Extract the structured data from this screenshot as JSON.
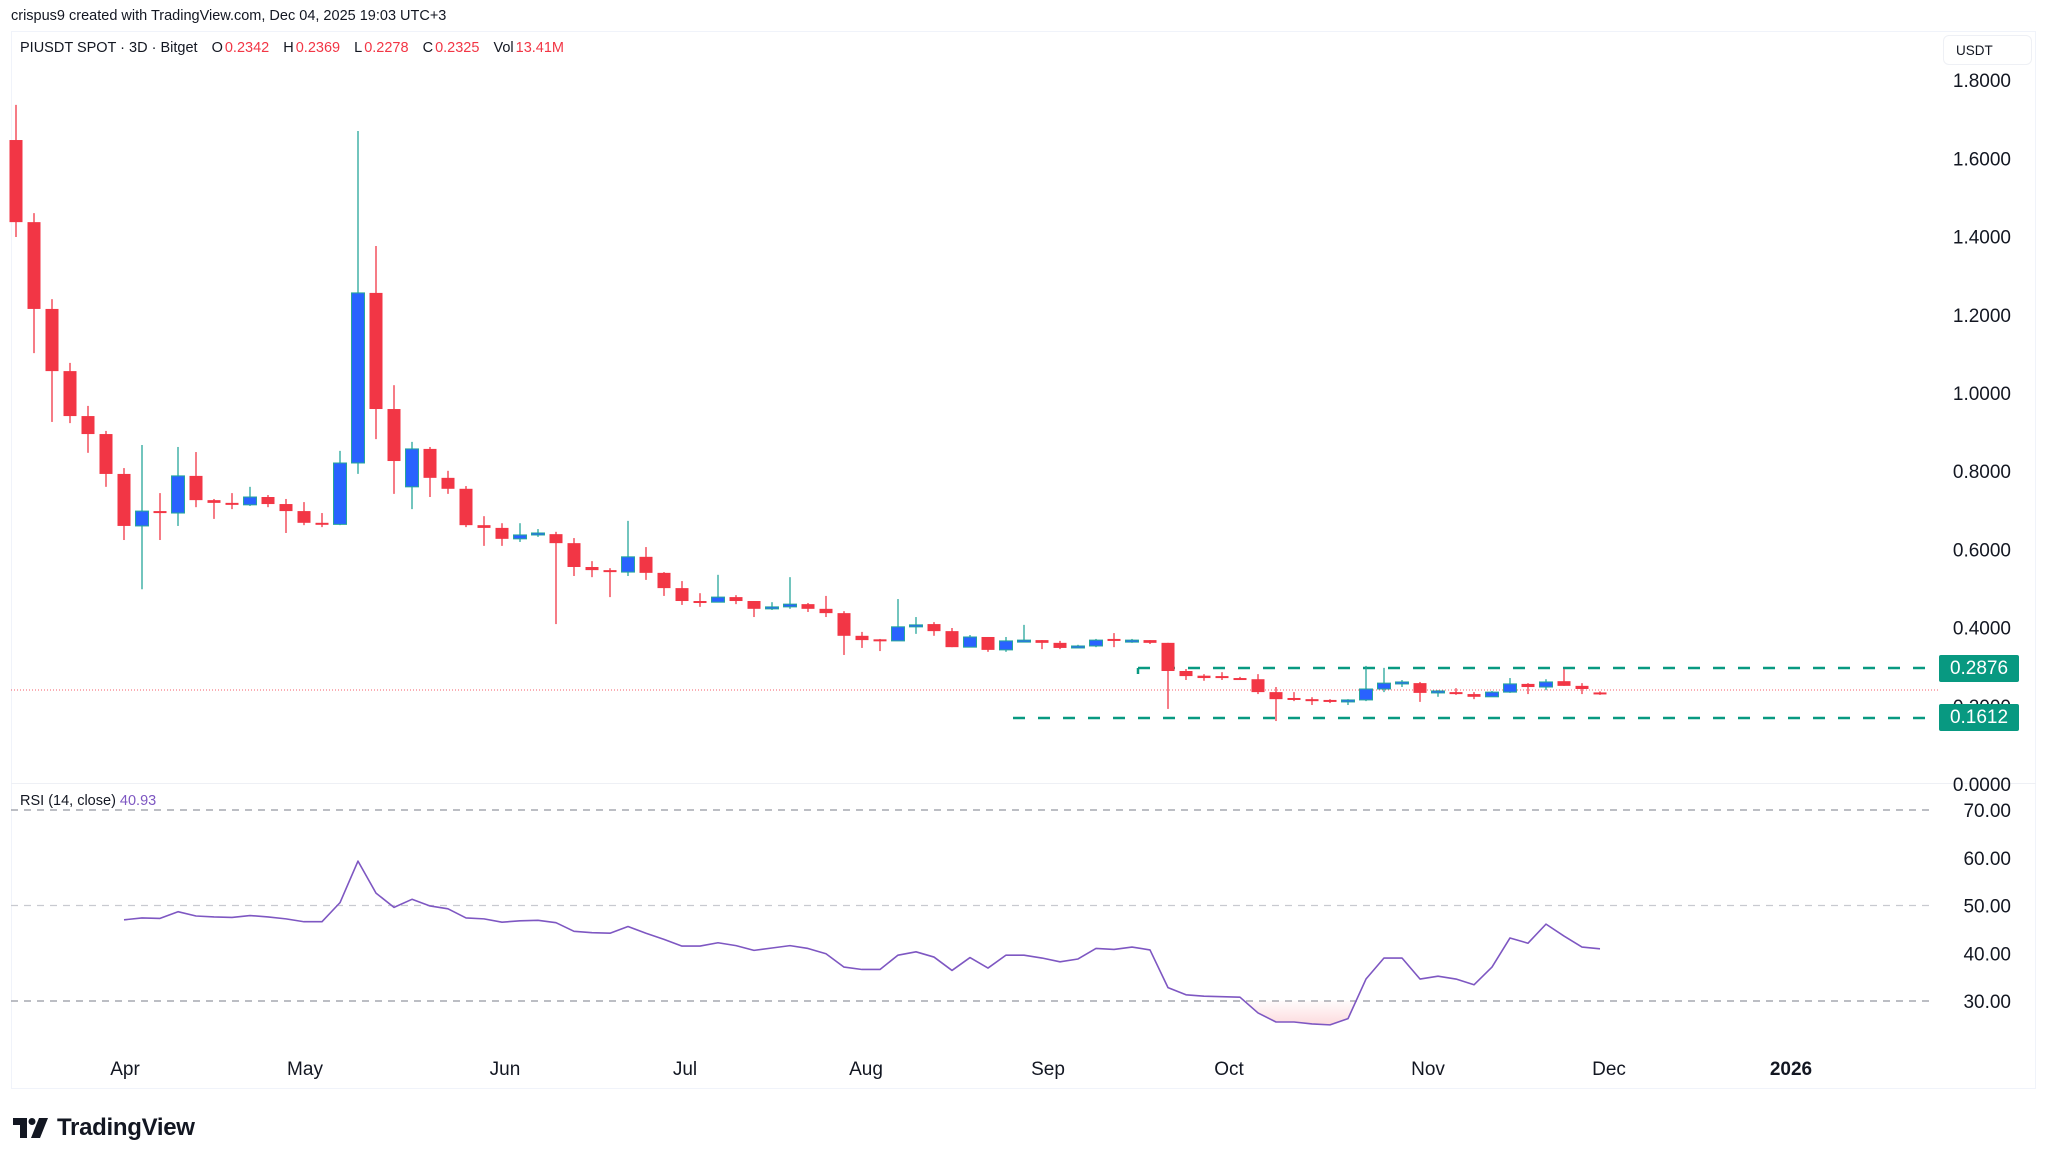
{
  "header": {
    "credit": "crispus9 created with TradingView.com, Dec 04, 2025 19:03 UTC+3"
  },
  "legend": {
    "symbol": "PIUSDT SPOT · 3D · Bitget",
    "open_label": "O",
    "open": "0.2342",
    "high_label": "H",
    "high": "0.2369",
    "low_label": "L",
    "low": "0.2278",
    "close_label": "C",
    "close": "0.2325",
    "vol_label": "Vol",
    "vol": "13.41M"
  },
  "price_axis": {
    "currency": "USDT",
    "ticks": [
      "1.8000",
      "1.6000",
      "1.4000",
      "1.2000",
      "1.0000",
      "0.8000",
      "0.6000",
      "0.4000",
      "0.2000",
      "0.0000"
    ]
  },
  "levels": {
    "resistance": "0.2876",
    "support": "0.1612"
  },
  "rsi": {
    "label": "RSI (14, close)",
    "value": "40.93",
    "ticks": [
      "70.00",
      "60.00",
      "50.00",
      "40.00",
      "30.00"
    ]
  },
  "time_axis": {
    "labels": [
      "Apr",
      "May",
      "Jun",
      "Jul",
      "Aug",
      "Sep",
      "Oct",
      "Nov",
      "Dec",
      "2026"
    ]
  },
  "branding": {
    "logo_text": "TradingView"
  },
  "colors": {
    "up_body": "#2962ff",
    "up_wick": "#26a69a",
    "down": "#f23645",
    "level_line": "#089981",
    "rsi_line": "#7e57c2",
    "last_price_line": "#f23645"
  },
  "chart_data": [
    {
      "type": "candlestick",
      "title": "PIUSDT SPOT · 3D · Bitget",
      "ylabel": "USDT",
      "ylim": [
        0,
        1.8
      ],
      "x_ticks": [
        "Apr",
        "May",
        "Jun",
        "Jul",
        "Aug",
        "Sep",
        "Oct",
        "Nov",
        "Dec",
        "2026"
      ],
      "horizontal_levels": [
        0.2876,
        0.1612
      ],
      "last_close": 0.2325,
      "columns": [
        "open",
        "high",
        "low",
        "close"
      ],
      "candles": [
        [
          1.647,
          1.737,
          1.399,
          1.437
        ],
        [
          1.437,
          1.46,
          1.102,
          1.215
        ],
        [
          1.215,
          1.24,
          0.926,
          1.056
        ],
        [
          1.056,
          1.077,
          0.923,
          0.941
        ],
        [
          0.941,
          0.967,
          0.847,
          0.895
        ],
        [
          0.895,
          0.903,
          0.76,
          0.793
        ],
        [
          0.793,
          0.808,
          0.624,
          0.66
        ],
        [
          0.66,
          0.867,
          0.498,
          0.698
        ],
        [
          0.698,
          0.744,
          0.624,
          0.693
        ],
        [
          0.693,
          0.862,
          0.66,
          0.788
        ],
        [
          0.788,
          0.849,
          0.708,
          0.726
        ],
        [
          0.726,
          0.729,
          0.678,
          0.719
        ],
        [
          0.719,
          0.744,
          0.703,
          0.714
        ],
        [
          0.714,
          0.76,
          0.711,
          0.734
        ],
        [
          0.734,
          0.739,
          0.708,
          0.716
        ],
        [
          0.716,
          0.729,
          0.642,
          0.698
        ],
        [
          0.698,
          0.721,
          0.662,
          0.668
        ],
        [
          0.668,
          0.693,
          0.657,
          0.664
        ],
        [
          0.664,
          0.852,
          0.662,
          0.821
        ],
        [
          0.821,
          1.67,
          0.793,
          1.256
        ],
        [
          1.256,
          1.376,
          0.882,
          0.959
        ],
        [
          0.959,
          1.02,
          0.742,
          0.826
        ],
        [
          0.76,
          0.875,
          0.703,
          0.857
        ],
        [
          0.857,
          0.862,
          0.734,
          0.783
        ],
        [
          0.783,
          0.801,
          0.742,
          0.755
        ],
        [
          0.755,
          0.762,
          0.657,
          0.662
        ],
        [
          0.662,
          0.685,
          0.609,
          0.655
        ],
        [
          0.655,
          0.667,
          0.609,
          0.627
        ],
        [
          0.627,
          0.667,
          0.619,
          0.637
        ],
        [
          0.637,
          0.652,
          0.632,
          0.642
        ],
        [
          0.639,
          0.645,
          0.409,
          0.616
        ],
        [
          0.616,
          0.629,
          0.532,
          0.555
        ],
        [
          0.555,
          0.57,
          0.529,
          0.547
        ],
        [
          0.547,
          0.552,
          0.478,
          0.542
        ],
        [
          0.542,
          0.673,
          0.532,
          0.581
        ],
        [
          0.581,
          0.606,
          0.522,
          0.54
        ],
        [
          0.54,
          0.542,
          0.481,
          0.501
        ],
        [
          0.501,
          0.519,
          0.458,
          0.468
        ],
        [
          0.468,
          0.488,
          0.453,
          0.465
        ],
        [
          0.465,
          0.535,
          0.465,
          0.478
        ],
        [
          0.478,
          0.483,
          0.46,
          0.468
        ],
        [
          0.468,
          0.468,
          0.427,
          0.448
        ],
        [
          0.448,
          0.465,
          0.445,
          0.453
        ],
        [
          0.453,
          0.529,
          0.448,
          0.46
        ],
        [
          0.46,
          0.463,
          0.44,
          0.448
        ],
        [
          0.448,
          0.481,
          0.427,
          0.437
        ],
        [
          0.437,
          0.442,
          0.33,
          0.379
        ],
        [
          0.379,
          0.389,
          0.348,
          0.368
        ],
        [
          0.37,
          0.371,
          0.34,
          0.366
        ],
        [
          0.366,
          0.473,
          0.366,
          0.402
        ],
        [
          0.402,
          0.427,
          0.384,
          0.407
        ],
        [
          0.409,
          0.414,
          0.379,
          0.391
        ],
        [
          0.391,
          0.399,
          0.35,
          0.35
        ],
        [
          0.35,
          0.381,
          0.35,
          0.376
        ],
        [
          0.376,
          0.376,
          0.338,
          0.343
        ],
        [
          0.343,
          0.376,
          0.338,
          0.366
        ],
        [
          0.366,
          0.407,
          0.363,
          0.368
        ],
        [
          0.368,
          0.368,
          0.345,
          0.361
        ],
        [
          0.361,
          0.366,
          0.345,
          0.348
        ],
        [
          0.348,
          0.356,
          0.348,
          0.353
        ],
        [
          0.353,
          0.371,
          0.35,
          0.368
        ],
        [
          0.371,
          0.386,
          0.35,
          0.368
        ],
        [
          0.366,
          0.371,
          0.361,
          0.368
        ],
        [
          0.368,
          0.368,
          0.358,
          0.361
        ],
        [
          0.361,
          0.361,
          0.192,
          0.289
        ],
        [
          0.289,
          0.294,
          0.266,
          0.276
        ],
        [
          0.277,
          0.281,
          0.264,
          0.271
        ],
        [
          0.276,
          0.286,
          0.266,
          0.271
        ],
        [
          0.271,
          0.274,
          0.268,
          0.268
        ],
        [
          0.268,
          0.281,
          0.23,
          0.235
        ],
        [
          0.235,
          0.248,
          0.161,
          0.217
        ],
        [
          0.22,
          0.235,
          0.212,
          0.217
        ],
        [
          0.217,
          0.222,
          0.202,
          0.212
        ],
        [
          0.215,
          0.217,
          0.207,
          0.21
        ],
        [
          0.21,
          0.217,
          0.202,
          0.215
        ],
        [
          0.215,
          0.302,
          0.212,
          0.243
        ],
        [
          0.243,
          0.297,
          0.235,
          0.258
        ],
        [
          0.258,
          0.266,
          0.248,
          0.261
        ],
        [
          0.258,
          0.261,
          0.21,
          0.233
        ],
        [
          0.235,
          0.24,
          0.223,
          0.238
        ],
        [
          0.235,
          0.245,
          0.228,
          0.233
        ],
        [
          0.23,
          0.235,
          0.217,
          0.223
        ],
        [
          0.223,
          0.238,
          0.223,
          0.235
        ],
        [
          0.235,
          0.271,
          0.233,
          0.256
        ],
        [
          0.256,
          0.258,
          0.23,
          0.248
        ],
        [
          0.248,
          0.268,
          0.24,
          0.261
        ],
        [
          0.263,
          0.294,
          0.251,
          0.251
        ],
        [
          0.251,
          0.258,
          0.23,
          0.243
        ],
        [
          0.2342,
          0.2369,
          0.2278,
          0.2325
        ]
      ]
    },
    {
      "type": "line",
      "title": "RSI (14, close)",
      "ylim": [
        20,
        75
      ],
      "reference_lines": [
        70,
        50,
        30
      ],
      "start_index": 6,
      "values": [
        47.0,
        47.4,
        47.3,
        48.7,
        47.8,
        47.6,
        47.5,
        47.9,
        47.6,
        47.2,
        46.6,
        46.6,
        50.6,
        59.3,
        52.6,
        49.6,
        51.3,
        49.9,
        49.3,
        47.4,
        47.2,
        46.5,
        46.8,
        46.9,
        46.4,
        44.6,
        44.3,
        44.2,
        45.6,
        44.2,
        42.9,
        41.5,
        41.5,
        42.2,
        41.6,
        40.6,
        41.1,
        41.6,
        41.0,
        39.9,
        37.1,
        36.6,
        36.6,
        39.6,
        40.3,
        39.2,
        36.4,
        39.1,
        36.9,
        39.6,
        39.6,
        39.0,
        38.2,
        38.8,
        41.0,
        40.8,
        41.3,
        40.7,
        32.8,
        31.3,
        31.0,
        30.9,
        30.8,
        27.5,
        25.6,
        25.6,
        25.2,
        25.0,
        26.3,
        34.6,
        39.0,
        39.0,
        34.6,
        35.2,
        34.6,
        33.4,
        37.1,
        43.2,
        42.1,
        46.1,
        43.6,
        41.3,
        40.93
      ]
    }
  ]
}
